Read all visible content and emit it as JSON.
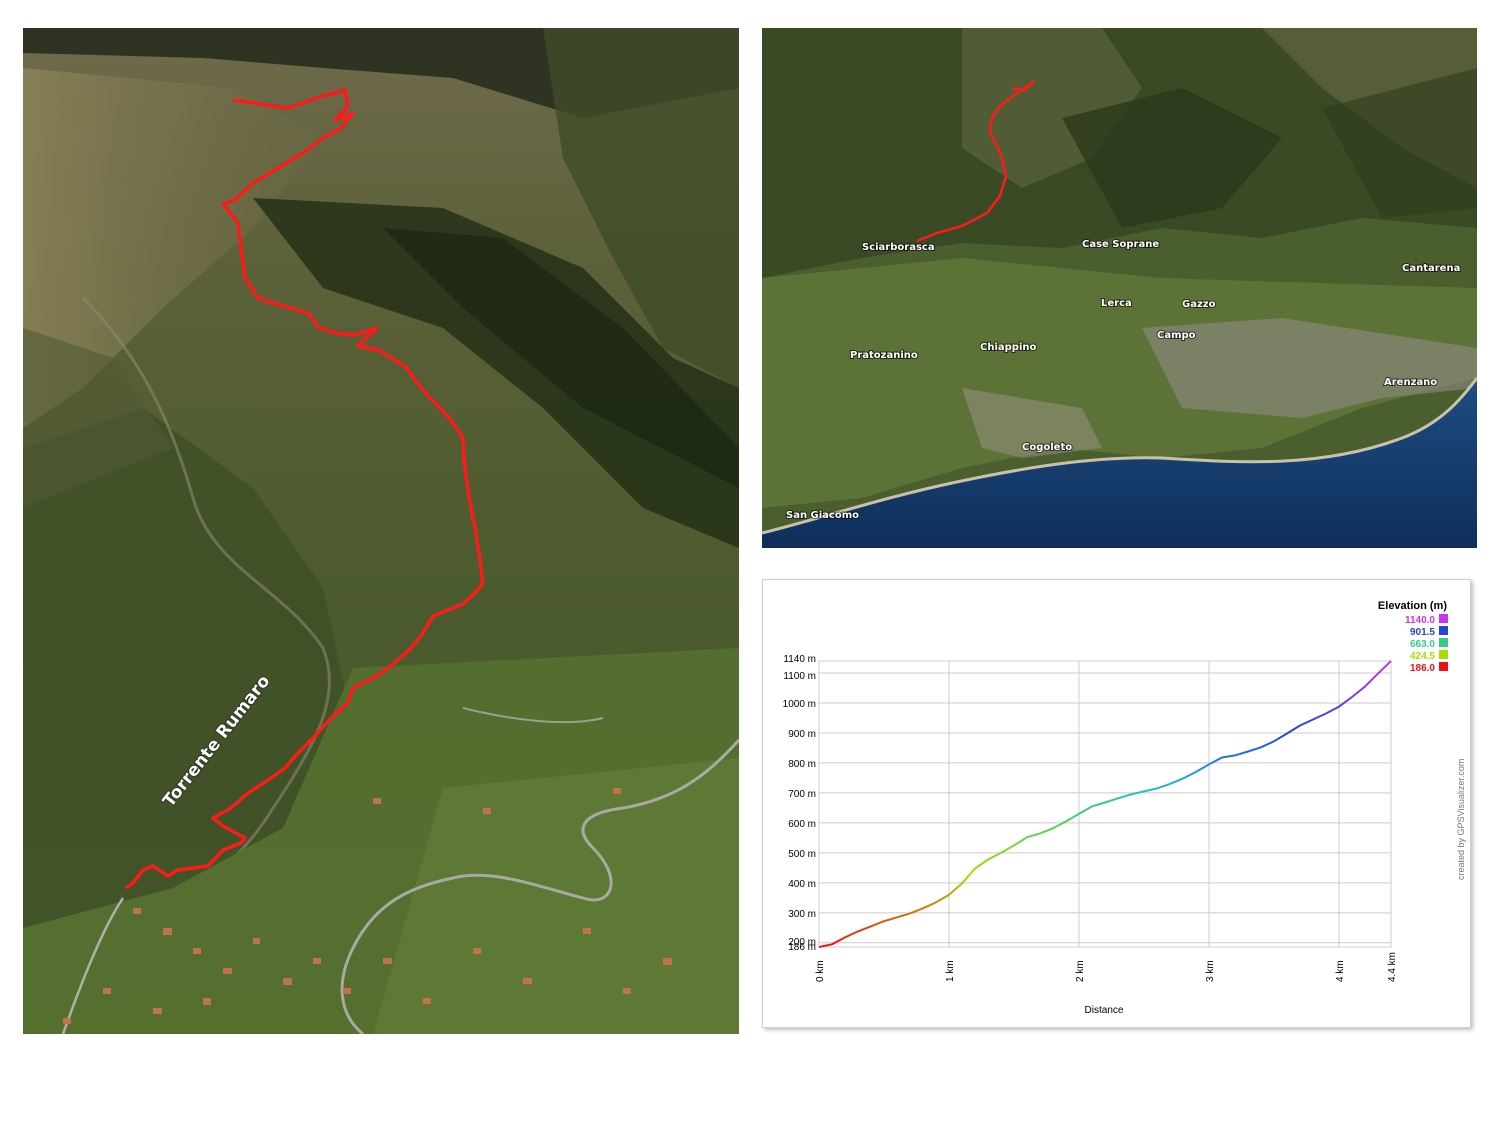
{
  "left_map": {
    "river_label": "Torrente Rumaro",
    "track_color": "#ff1a1a"
  },
  "right_map": {
    "places": [
      "Sciarborasca",
      "Case Soprane",
      "Cantarena",
      "Lerca",
      "Gazzo",
      "Campo",
      "Pratozanino",
      "Chiappino",
      "Arenzano",
      "Cogoleto",
      "San Giacomo"
    ],
    "track_color": "#ff1a1a"
  },
  "chart_data": {
    "type": "line",
    "title": "",
    "xlabel": "Distance",
    "ylabel": "",
    "xlim": [
      0,
      4.4
    ],
    "ylim": [
      186,
      1140
    ],
    "x_ticks": [
      0,
      1,
      2,
      3,
      4,
      4.4
    ],
    "x_tick_labels": [
      "0 km",
      "1 km",
      "2 km",
      "3 km",
      "4 km",
      "4.4 km"
    ],
    "y_ticks": [
      186,
      200,
      300,
      400,
      500,
      600,
      700,
      800,
      900,
      1000,
      1100,
      1140
    ],
    "y_tick_labels": [
      "186 m",
      "200 m",
      "300 m",
      "400 m",
      "500 m",
      "600 m",
      "700 m",
      "800 m",
      "900 m",
      "1000 m",
      "1100 m",
      "1140 m"
    ],
    "grid": true,
    "legend_position": "top-right",
    "legend": {
      "title": "Elevation (m)",
      "entries": [
        {
          "label": "1140.0",
          "color": "#cc33ee"
        },
        {
          "label": "901.5",
          "color": "#2244dd"
        },
        {
          "label": "663.0",
          "color": "#33cc88"
        },
        {
          "label": "424.5",
          "color": "#aadd00"
        },
        {
          "label": "186.0",
          "color": "#ee1111"
        }
      ]
    },
    "credit": "created by GPSVisualizer.com",
    "series": [
      {
        "x": [
          0,
          0.1,
          0.2,
          0.3,
          0.4,
          0.5,
          0.6,
          0.7,
          0.8,
          0.9,
          1.0,
          1.1,
          1.2,
          1.3,
          1.4,
          1.5,
          1.6,
          1.7,
          1.8,
          1.9,
          2.0,
          2.1,
          2.2,
          2.3,
          2.4,
          2.5,
          2.6,
          2.7,
          2.8,
          2.9,
          3.0,
          3.1,
          3.2,
          3.3,
          3.4,
          3.5,
          3.6,
          3.7,
          3.8,
          3.9,
          4.0,
          4.1,
          4.2,
          4.3,
          4.4
        ],
        "y": [
          186,
          195,
          218,
          238,
          255,
          272,
          285,
          298,
          315,
          335,
          360,
          398,
          448,
          478,
          500,
          525,
          552,
          565,
          582,
          605,
          630,
          655,
          668,
          682,
          695,
          705,
          715,
          730,
          748,
          770,
          795,
          818,
          825,
          838,
          852,
          872,
          898,
          925,
          945,
          965,
          988,
          1020,
          1055,
          1098,
          1140
        ]
      }
    ]
  }
}
